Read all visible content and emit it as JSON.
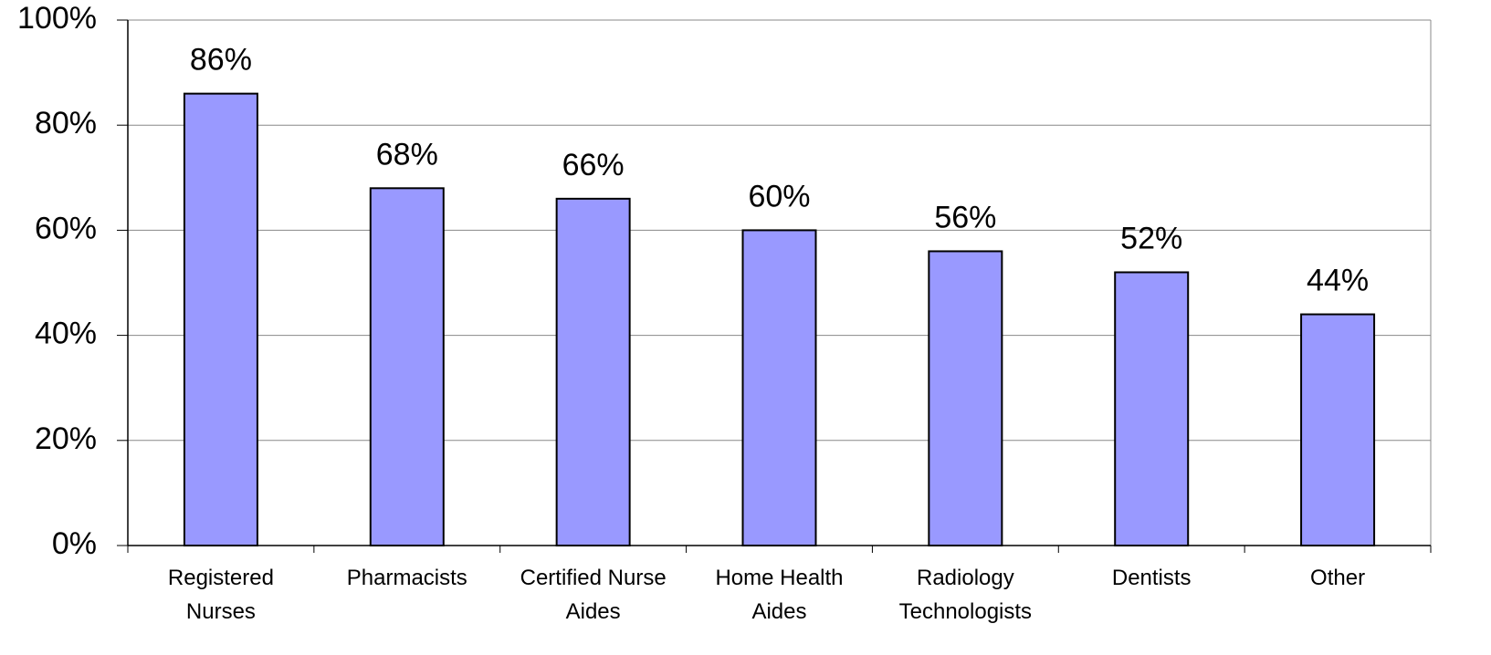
{
  "chart_data": {
    "type": "bar",
    "categories": [
      "Registered\nNurses",
      "Pharmacists",
      "Certified Nurse\nAides",
      "Home Health\nAides",
      "Radiology\nTechnologists",
      "Dentists",
      "Other"
    ],
    "values": [
      86,
      68,
      66,
      60,
      56,
      52,
      44
    ],
    "value_labels": [
      "86%",
      "68%",
      "66%",
      "60%",
      "56%",
      "52%",
      "44%"
    ],
    "color": "#9999ff",
    "ylim": [
      0,
      100
    ],
    "yticks": [
      {
        "value": 0,
        "label": "0%"
      },
      {
        "value": 20,
        "label": "20%"
      },
      {
        "value": 40,
        "label": "40%"
      },
      {
        "value": 60,
        "label": "60%"
      },
      {
        "value": 80,
        "label": "80%"
      },
      {
        "value": 100,
        "label": "100%"
      }
    ],
    "grid": true
  }
}
